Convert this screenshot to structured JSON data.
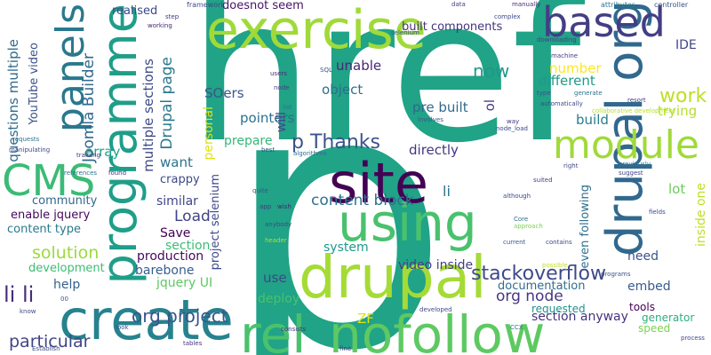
{
  "words": [
    {
      "id": "href",
      "text": "href",
      "color": "#20a386"
    },
    {
      "id": "p",
      "text": "p",
      "color": "#20a386"
    },
    {
      "id": "exercise",
      "text": "exercise",
      "color": "#a0da39"
    },
    {
      "id": "programme",
      "text": "programme",
      "color": "#1f9e89"
    },
    {
      "id": "create",
      "text": "create",
      "color": "#26828e"
    },
    {
      "id": "site",
      "text": "site",
      "color": "#440154"
    },
    {
      "id": "using",
      "text": "using",
      "color": "#4ac16d"
    },
    {
      "id": "drupal",
      "text": "drupal",
      "color": "#a5db36"
    },
    {
      "id": "rel",
      "text": "rel",
      "color": "#4ac16d"
    },
    {
      "id": "nofollow",
      "text": "nofollow",
      "color": "#5ec962"
    },
    {
      "id": "drupalorg",
      "text": "drupal org",
      "color": "#31688e"
    },
    {
      "id": "based",
      "text": "based",
      "color": "#433e85"
    },
    {
      "id": "module",
      "text": "module",
      "color": "#a0da39"
    },
    {
      "id": "panels",
      "text": "panels",
      "color": "#2a788e"
    },
    {
      "id": "cms",
      "text": "CMS",
      "color": "#3bbb75"
    },
    {
      "id": "pthanks",
      "text": "p Thanks",
      "color": "#3b528b"
    },
    {
      "id": "work",
      "text": "work",
      "color": "#bddf26"
    },
    {
      "id": "stackoverflow",
      "text": "stackoverflow",
      "color": "#3e4989"
    },
    {
      "id": "lili",
      "text": "li li",
      "color": "#472c7a"
    },
    {
      "id": "orgproject",
      "text": "org project",
      "color": "#39558c"
    },
    {
      "id": "contentblock",
      "text": "content block",
      "color": "#2c728e"
    },
    {
      "id": "ide",
      "text": "IDE",
      "color": "#404588"
    },
    {
      "id": "joomla",
      "text": "Joomla Builder",
      "color": "#31688e"
    },
    {
      "id": "drupalpage",
      "text": "Drupal page",
      "color": "#2a788e"
    },
    {
      "id": "questions",
      "text": "questions multiple",
      "color": "#2f6c8e"
    },
    {
      "id": "youtube",
      "text": "YouTube video",
      "color": "#3b528b"
    },
    {
      "id": "multiplesections",
      "text": "multiple sections",
      "color": "#3e4a89"
    },
    {
      "id": "soers",
      "text": "SOers",
      "color": "#39568c"
    },
    {
      "id": "object",
      "text": "object",
      "color": "#2e6e8e"
    },
    {
      "id": "unable",
      "text": "unable",
      "color": "#482576"
    },
    {
      "id": "now",
      "text": "now",
      "color": "#1f988b"
    },
    {
      "id": "number",
      "text": "number",
      "color": "#fde725"
    },
    {
      "id": "different",
      "text": "different",
      "color": "#1f9a8a"
    },
    {
      "id": "build",
      "text": "build",
      "color": "#287d8e"
    },
    {
      "id": "trying",
      "text": "trying",
      "color": "#b5de2b"
    },
    {
      "id": "prebuilt",
      "text": "pre built",
      "color": "#31688e"
    },
    {
      "id": "ol",
      "text": "ol",
      "color": "#443a83"
    },
    {
      "id": "pointers",
      "text": "pointers",
      "color": "#2d708e"
    },
    {
      "id": "will",
      "text": "will",
      "color": "#3e4989"
    },
    {
      "id": "prepare",
      "text": "prepare",
      "color": "#35b779"
    },
    {
      "id": "directly",
      "text": "directly",
      "color": "#453781"
    },
    {
      "id": "want",
      "text": "want",
      "color": "#2c728e"
    },
    {
      "id": "array",
      "text": "array",
      "color": "#1fa188"
    },
    {
      "id": "crappy",
      "text": "crappy",
      "color": "#3e4989"
    },
    {
      "id": "personal",
      "text": "personal",
      "color": "#dde318"
    },
    {
      "id": "similar",
      "text": "similar",
      "color": "#3f4788"
    },
    {
      "id": "load",
      "text": "Load",
      "color": "#414487"
    },
    {
      "id": "save",
      "text": "Save",
      "color": "#440154"
    },
    {
      "id": "section",
      "text": "section",
      "color": "#3dbc74"
    },
    {
      "id": "production",
      "text": "production",
      "color": "#46085c"
    },
    {
      "id": "barebone",
      "text": "barebone",
      "color": "#355f8d"
    },
    {
      "id": "jqueryui",
      "text": "jquery UI",
      "color": "#5ec962"
    },
    {
      "id": "solution",
      "text": "solution",
      "color": "#9bd93c"
    },
    {
      "id": "community",
      "text": "community",
      "color": "#31688e"
    },
    {
      "id": "enablejquery",
      "text": "enable jquery",
      "color": "#46085c"
    },
    {
      "id": "contenttype",
      "text": "content type",
      "color": "#2a788e"
    },
    {
      "id": "development",
      "text": "development",
      "color": "#3dbc74"
    },
    {
      "id": "help",
      "text": "help",
      "color": "#355f8d"
    },
    {
      "id": "particular",
      "text": "particular",
      "color": "#414487"
    },
    {
      "id": "orgnode",
      "text": "org node",
      "color": "#453781"
    },
    {
      "id": "documentation",
      "text": "documentation",
      "color": "#2e6e8e"
    },
    {
      "id": "videoinside",
      "text": "video inside",
      "color": "#433e85"
    },
    {
      "id": "system",
      "text": "system",
      "color": "#1f988b"
    },
    {
      "id": "use",
      "text": "use",
      "color": "#404588"
    },
    {
      "id": "deploy",
      "text": "deploy",
      "color": "#4ac16d"
    },
    {
      "id": "zf",
      "text": "ZF",
      "color": "#dde318"
    },
    {
      "id": "li",
      "text": "li",
      "color": "#2c728e"
    },
    {
      "id": "need",
      "text": "need",
      "color": "#3b528b"
    },
    {
      "id": "embed",
      "text": "embed",
      "color": "#375b8d"
    },
    {
      "id": "lot",
      "text": "lot",
      "color": "#6ccd5a"
    },
    {
      "id": "insideone",
      "text": "inside one",
      "color": "#bddf26"
    },
    {
      "id": "evenfollowing",
      "text": "even following",
      "color": "#2d708e"
    },
    {
      "id": "sectionanyway",
      "text": "section anyway",
      "color": "#46337f"
    },
    {
      "id": "requested",
      "text": "requested",
      "color": "#21918c"
    },
    {
      "id": "speed",
      "text": "speed",
      "color": "#7ad151"
    },
    {
      "id": "generator",
      "text": "generator",
      "color": "#29af7f"
    },
    {
      "id": "tools",
      "text": "tools",
      "color": "#440154"
    },
    {
      "id": "projectselenium",
      "text": "project selenium",
      "color": "#3e4989"
    },
    {
      "id": "builtcomponents",
      "text": "built components",
      "color": "#46337f"
    },
    {
      "id": "doesnotseem",
      "text": "doesnot seem",
      "color": "#471365"
    },
    {
      "id": "realised",
      "text": "realised",
      "color": "#3e4989"
    },
    {
      "id": "t_framework",
      "text": "framework",
      "color": "#3e4989"
    },
    {
      "id": "t_step",
      "text": "step",
      "color": "#46337f"
    },
    {
      "id": "t_working",
      "text": "working",
      "color": "#482576"
    },
    {
      "id": "t_data",
      "text": "data",
      "color": "#433e85"
    },
    {
      "id": "t_manually",
      "text": "manually",
      "color": "#472c7a"
    },
    {
      "id": "t_complex",
      "text": "complex",
      "color": "#3e4989"
    },
    {
      "id": "t_attributes",
      "text": "attributes",
      "color": "#2a788e"
    },
    {
      "id": "t_controller",
      "text": "controller",
      "color": "#3b528b"
    },
    {
      "id": "t_downloading",
      "text": "downloading",
      "color": "#433e85"
    },
    {
      "id": "t_machine",
      "text": "machine",
      "color": "#443a83"
    },
    {
      "id": "t_generate",
      "text": "generate",
      "color": "#2d708e"
    },
    {
      "id": "t_collab",
      "text": "collaborative development",
      "color": "#b5de2b"
    },
    {
      "id": "t_automatically",
      "text": "automatically",
      "color": "#3e4989"
    },
    {
      "id": "t_type",
      "text": "type",
      "color": "#3b528b"
    },
    {
      "id": "t_resort",
      "text": "resort",
      "color": "#46337f"
    },
    {
      "id": "t_previously",
      "text": "previously",
      "color": "#2a788e"
    },
    {
      "id": "t_suggest",
      "text": "suggest",
      "color": "#404588"
    },
    {
      "id": "t_right",
      "text": "right",
      "color": "#3e4989"
    },
    {
      "id": "t_way",
      "text": "way",
      "color": "#453781"
    },
    {
      "id": "t_nodeload",
      "text": "node_load",
      "color": "#3e4989"
    },
    {
      "id": "t_involves",
      "text": "involves",
      "color": "#39568c"
    },
    {
      "id": "t_algorithms",
      "text": "algorithms",
      "color": "#2c728e"
    },
    {
      "id": "t_sql",
      "text": "SQL",
      "color": "#3b528b"
    },
    {
      "id": "t_users",
      "text": "users",
      "color": "#472c7a"
    },
    {
      "id": "t_node",
      "text": "node",
      "color": "#433e85"
    },
    {
      "id": "t_list",
      "text": "list",
      "color": "#2a788e"
    },
    {
      "id": "t_best",
      "text": "best",
      "color": "#3e4989"
    },
    {
      "id": "t_requests",
      "text": "requests",
      "color": "#2c728e"
    },
    {
      "id": "t_training",
      "text": "training",
      "color": "#453781"
    },
    {
      "id": "t_manipulating",
      "text": "manipulating",
      "color": "#3e4989"
    },
    {
      "id": "t_references",
      "text": "references",
      "color": "#2c728e"
    },
    {
      "id": "t_found",
      "text": "found",
      "color": "#46337f"
    },
    {
      "id": "t_quite",
      "text": "quite",
      "color": "#3b528b"
    },
    {
      "id": "t_app",
      "text": "app",
      "color": "#443a83"
    },
    {
      "id": "t_wish",
      "text": "wish",
      "color": "#482576"
    },
    {
      "id": "t_anybody",
      "text": "anybody",
      "color": "#3e4989"
    },
    {
      "id": "t_header",
      "text": "header",
      "color": "#b5de2b"
    },
    {
      "id": "t_although",
      "text": "although",
      "color": "#3e4989"
    },
    {
      "id": "t_core",
      "text": "Core",
      "color": "#2c728e"
    },
    {
      "id": "t_approach",
      "text": "approach",
      "color": "#7ad151"
    },
    {
      "id": "t_current",
      "text": "current",
      "color": "#39568c"
    },
    {
      "id": "t_suited",
      "text": "suited",
      "color": "#433e85"
    },
    {
      "id": "t_fields",
      "text": "fields",
      "color": "#3e4989"
    },
    {
      "id": "t_possible",
      "text": "possible",
      "color": "#bddf26"
    },
    {
      "id": "t_contains",
      "text": "contains",
      "color": "#3e4989"
    },
    {
      "id": "t_programs",
      "text": "programs",
      "color": "#3b528b"
    },
    {
      "id": "t_process",
      "text": "process",
      "color": "#3e4989"
    },
    {
      "id": "t_consists",
      "text": "consists",
      "color": "#46337f"
    },
    {
      "id": "t_developed",
      "text": "developed",
      "color": "#3e4989"
    },
    {
      "id": "t_tables",
      "text": "tables",
      "color": "#453781"
    },
    {
      "id": "t_look",
      "text": "look",
      "color": "#3b528b"
    },
    {
      "id": "t_know",
      "text": "know",
      "color": "#3e4989"
    },
    {
      "id": "t_fine",
      "text": "fine",
      "color": "#433e85"
    },
    {
      "id": "t_ccx",
      "text": "CCX",
      "color": "#2c728e"
    },
    {
      "id": "t_establish",
      "text": "Establish",
      "color": "#3e4989"
    },
    {
      "id": "t_00",
      "text": "00",
      "color": "#3b528b"
    },
    {
      "id": "t_selenium",
      "text": "selenium",
      "color": "#39568c"
    }
  ]
}
